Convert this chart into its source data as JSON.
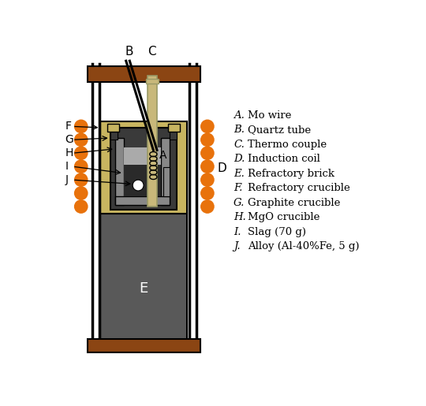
{
  "bg_color": "#ffffff",
  "brown_color": "#8B4513",
  "dark_gray": "#595959",
  "mid_gray": "#888888",
  "light_gray": "#aaaaaa",
  "black": "#000000",
  "orange": "#E8720C",
  "tan_color": "#C8B560",
  "beige_tube": "#C8B87A",
  "graphite_color": "#3a3a3a",
  "legend_items": [
    [
      "A.",
      "Mo wire"
    ],
    [
      "B.",
      "Quartz tube"
    ],
    [
      "C.",
      "Thermo couple"
    ],
    [
      "D.",
      "Induction coil"
    ],
    [
      "E.",
      "Refractory brick"
    ],
    [
      "F.",
      "Refractory crucible"
    ],
    [
      "G.",
      "Graphite crucible"
    ],
    [
      "H.",
      "MgO crucible"
    ],
    [
      "I.",
      "Slag (70 g)"
    ],
    [
      "J.",
      "Alloy (Al-40%Fe, 5 g)"
    ]
  ]
}
